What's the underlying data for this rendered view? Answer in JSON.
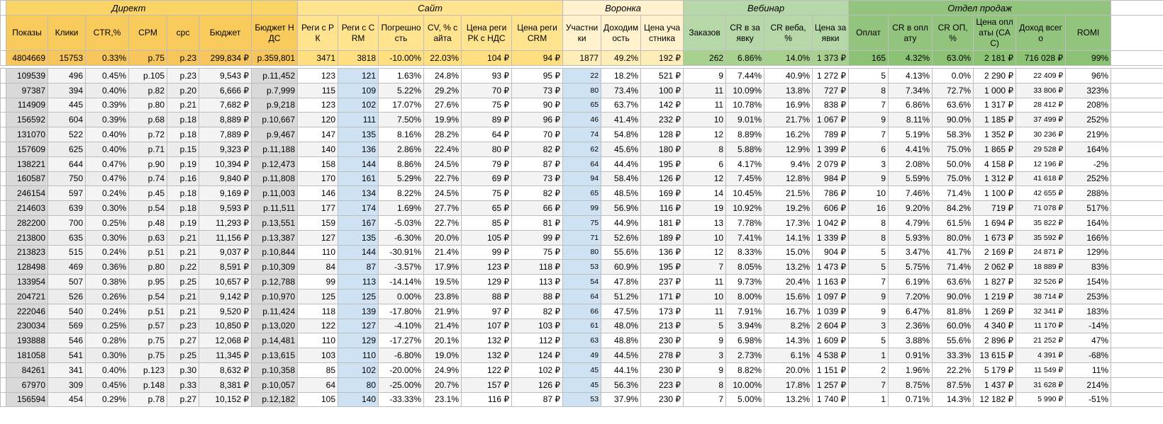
{
  "table": {
    "groups": [
      {
        "label": "Директ",
        "columns": [
          "Показы",
          "Клики",
          "CTR,%",
          "CPM",
          "cpc",
          "Бюджет"
        ]
      },
      {
        "columns": [
          "Бюджет НДС"
        ]
      },
      {
        "label": "Сайт",
        "columns": [
          "Реги с РК",
          "Реги с CRM",
          "Погрешность",
          "CV, % сайта",
          "Цена реги РК с НДС",
          "Цена реги CRM"
        ]
      },
      {
        "label": "Воронка",
        "columns": [
          "Участники",
          "Доходимость",
          "Цена участника"
        ]
      },
      {
        "label": "Вебинар",
        "columns": [
          "Заказов",
          "CR в заявку",
          "CR веба, %",
          "Цена заявки"
        ]
      },
      {
        "label": "Отдел продаж",
        "columns": [
          "Оплат",
          "CR в оплату",
          "CR ОП, %",
          "Цена оплаты (CAC)",
          "Доход всего",
          "ROMI"
        ]
      }
    ],
    "totals": [
      "4804669",
      "15753",
      "0.33%",
      "р.75",
      "р.23",
      "299,834 ₽",
      "р.359,801",
      "3471",
      "3818",
      "-10.00%",
      "22.03%",
      "104 ₽",
      "94 ₽",
      "1877",
      "49.2%",
      "192 ₽",
      "262",
      "6.86%",
      "14.0%",
      "1 373 ₽",
      "165",
      "4.32%",
      "63.0%",
      "2 181 ₽",
      "716 028 ₽",
      "99%"
    ],
    "rows": [
      [
        "109539",
        "496",
        "0.45%",
        "р.105",
        "р.23",
        "9,543 ₽",
        "р.11,452",
        "123",
        "121",
        "1.63%",
        "24.8%",
        "93 ₽",
        "95 ₽",
        "22",
        "18.2%",
        "521 ₽",
        "9",
        "7.44%",
        "40.9%",
        "1 272 ₽",
        "5",
        "4.13%",
        "0.0%",
        "2 290 ₽",
        "22 409 ₽",
        "96%"
      ],
      [
        "97387",
        "394",
        "0.40%",
        "р.82",
        "р.20",
        "6,666 ₽",
        "р.7,999",
        "115",
        "109",
        "5.22%",
        "29.2%",
        "70 ₽",
        "73 ₽",
        "80",
        "73.4%",
        "100 ₽",
        "11",
        "10.09%",
        "13.8%",
        "727 ₽",
        "8",
        "7.34%",
        "72.7%",
        "1 000 ₽",
        "33 806 ₽",
        "323%"
      ],
      [
        "114909",
        "445",
        "0.39%",
        "р.80",
        "р.21",
        "7,682 ₽",
        "р.9,218",
        "123",
        "102",
        "17.07%",
        "27.6%",
        "75 ₽",
        "90 ₽",
        "65",
        "63.7%",
        "142 ₽",
        "11",
        "10.78%",
        "16.9%",
        "838 ₽",
        "7",
        "6.86%",
        "63.6%",
        "1 317 ₽",
        "28 412 ₽",
        "208%"
      ],
      [
        "156592",
        "604",
        "0.39%",
        "р.68",
        "р.18",
        "8,889 ₽",
        "р.10,667",
        "120",
        "111",
        "7.50%",
        "19.9%",
        "89 ₽",
        "96 ₽",
        "46",
        "41.4%",
        "232 ₽",
        "10",
        "9.01%",
        "21.7%",
        "1 067 ₽",
        "9",
        "8.11%",
        "90.0%",
        "1 185 ₽",
        "37 499 ₽",
        "252%"
      ],
      [
        "131070",
        "522",
        "0.40%",
        "р.72",
        "р.18",
        "7,889 ₽",
        "р.9,467",
        "147",
        "135",
        "8.16%",
        "28.2%",
        "64 ₽",
        "70 ₽",
        "74",
        "54.8%",
        "128 ₽",
        "12",
        "8.89%",
        "16.2%",
        "789 ₽",
        "7",
        "5.19%",
        "58.3%",
        "1 352 ₽",
        "30 236 ₽",
        "219%"
      ],
      [
        "157609",
        "625",
        "0.40%",
        "р.71",
        "р.15",
        "9,323 ₽",
        "р.11,188",
        "140",
        "136",
        "2.86%",
        "22.4%",
        "80 ₽",
        "82 ₽",
        "62",
        "45.6%",
        "180 ₽",
        "8",
        "5.88%",
        "12.9%",
        "1 399 ₽",
        "6",
        "4.41%",
        "75.0%",
        "1 865 ₽",
        "29 528 ₽",
        "164%"
      ],
      [
        "138221",
        "644",
        "0.47%",
        "р.90",
        "р.19",
        "10,394 ₽",
        "р.12,473",
        "158",
        "144",
        "8.86%",
        "24.5%",
        "79 ₽",
        "87 ₽",
        "64",
        "44.4%",
        "195 ₽",
        "6",
        "4.17%",
        "9.4%",
        "2 079 ₽",
        "3",
        "2.08%",
        "50.0%",
        "4 158 ₽",
        "12 196 ₽",
        "-2%"
      ],
      [
        "160587",
        "750",
        "0.47%",
        "р.74",
        "р.16",
        "9,840 ₽",
        "р.11,808",
        "170",
        "161",
        "5.29%",
        "22.7%",
        "69 ₽",
        "73 ₽",
        "94",
        "58.4%",
        "126 ₽",
        "12",
        "7.45%",
        "12.8%",
        "984 ₽",
        "9",
        "5.59%",
        "75.0%",
        "1 312 ₽",
        "41 618 ₽",
        "252%"
      ],
      [
        "246154",
        "597",
        "0.24%",
        "р.45",
        "р.18",
        "9,169 ₽",
        "р.11,003",
        "146",
        "134",
        "8.22%",
        "24.5%",
        "75 ₽",
        "82 ₽",
        "65",
        "48.5%",
        "169 ₽",
        "14",
        "10.45%",
        "21.5%",
        "786 ₽",
        "10",
        "7.46%",
        "71.4%",
        "1 100 ₽",
        "42 655 ₽",
        "288%"
      ],
      [
        "214603",
        "639",
        "0.30%",
        "р.54",
        "р.18",
        "9,593 ₽",
        "р.11,511",
        "177",
        "174",
        "1.69%",
        "27.7%",
        "65 ₽",
        "66 ₽",
        "99",
        "56.9%",
        "116 ₽",
        "19",
        "10.92%",
        "19.2%",
        "606 ₽",
        "16",
        "9.20%",
        "84.2%",
        "719 ₽",
        "71 078 ₽",
        "517%"
      ],
      [
        "282200",
        "700",
        "0.25%",
        "р.48",
        "р.19",
        "11,293 ₽",
        "р.13,551",
        "159",
        "167",
        "-5.03%",
        "22.7%",
        "85 ₽",
        "81 ₽",
        "75",
        "44.9%",
        "181 ₽",
        "13",
        "7.78%",
        "17.3%",
        "1 042 ₽",
        "8",
        "4.79%",
        "61.5%",
        "1 694 ₽",
        "35 822 ₽",
        "164%"
      ],
      [
        "213800",
        "635",
        "0.30%",
        "р.63",
        "р.21",
        "11,156 ₽",
        "р.13,387",
        "127",
        "135",
        "-6.30%",
        "20.0%",
        "105 ₽",
        "99 ₽",
        "71",
        "52.6%",
        "189 ₽",
        "10",
        "7.41%",
        "14.1%",
        "1 339 ₽",
        "8",
        "5.93%",
        "80.0%",
        "1 673 ₽",
        "35 592 ₽",
        "166%"
      ],
      [
        "213823",
        "515",
        "0.24%",
        "р.51",
        "р.21",
        "9,037 ₽",
        "р.10,844",
        "110",
        "144",
        "-30.91%",
        "21.4%",
        "99 ₽",
        "75 ₽",
        "80",
        "55.6%",
        "136 ₽",
        "12",
        "8.33%",
        "15.0%",
        "904 ₽",
        "5",
        "3.47%",
        "41.7%",
        "2 169 ₽",
        "24 871 ₽",
        "129%"
      ],
      [
        "128498",
        "469",
        "0.36%",
        "р.80",
        "р.22",
        "8,591 ₽",
        "р.10,309",
        "84",
        "87",
        "-3.57%",
        "17.9%",
        "123 ₽",
        "118 ₽",
        "53",
        "60.9%",
        "195 ₽",
        "7",
        "8.05%",
        "13.2%",
        "1 473 ₽",
        "5",
        "5.75%",
        "71.4%",
        "2 062 ₽",
        "18 889 ₽",
        "83%"
      ],
      [
        "133954",
        "507",
        "0.38%",
        "р.95",
        "р.25",
        "10,657 ₽",
        "р.12,788",
        "99",
        "113",
        "-14.14%",
        "19.5%",
        "129 ₽",
        "113 ₽",
        "54",
        "47.8%",
        "237 ₽",
        "11",
        "9.73%",
        "20.4%",
        "1 163 ₽",
        "7",
        "6.19%",
        "63.6%",
        "1 827 ₽",
        "32 526 ₽",
        "154%"
      ],
      [
        "204721",
        "526",
        "0.26%",
        "р.54",
        "р.21",
        "9,142 ₽",
        "р.10,970",
        "125",
        "125",
        "0.00%",
        "23.8%",
        "88 ₽",
        "88 ₽",
        "64",
        "51.2%",
        "171 ₽",
        "10",
        "8.00%",
        "15.6%",
        "1 097 ₽",
        "9",
        "7.20%",
        "90.0%",
        "1 219 ₽",
        "38 714 ₽",
        "253%"
      ],
      [
        "222046",
        "540",
        "0.24%",
        "р.51",
        "р.21",
        "9,520 ₽",
        "р.11,424",
        "118",
        "139",
        "-17.80%",
        "21.9%",
        "97 ₽",
        "82 ₽",
        "66",
        "47.5%",
        "173 ₽",
        "11",
        "7.91%",
        "16.7%",
        "1 039 ₽",
        "9",
        "6.47%",
        "81.8%",
        "1 269 ₽",
        "32 341 ₽",
        "183%"
      ],
      [
        "230034",
        "569",
        "0.25%",
        "р.57",
        "р.23",
        "10,850 ₽",
        "р.13,020",
        "122",
        "127",
        "-4.10%",
        "21.4%",
        "107 ₽",
        "103 ₽",
        "61",
        "48.0%",
        "213 ₽",
        "5",
        "3.94%",
        "8.2%",
        "2 604 ₽",
        "3",
        "2.36%",
        "60.0%",
        "4 340 ₽",
        "11 170 ₽",
        "-14%"
      ],
      [
        "193888",
        "546",
        "0.28%",
        "р.75",
        "р.27",
        "12,068 ₽",
        "р.14,481",
        "110",
        "129",
        "-17.27%",
        "20.1%",
        "132 ₽",
        "112 ₽",
        "63",
        "48.8%",
        "230 ₽",
        "9",
        "6.98%",
        "14.3%",
        "1 609 ₽",
        "5",
        "3.88%",
        "55.6%",
        "2 896 ₽",
        "21 252 ₽",
        "47%"
      ],
      [
        "181058",
        "541",
        "0.30%",
        "р.75",
        "р.25",
        "11,345 ₽",
        "р.13,615",
        "103",
        "110",
        "-6.80%",
        "19.0%",
        "132 ₽",
        "124 ₽",
        "49",
        "44.5%",
        "278 ₽",
        "3",
        "2.73%",
        "6.1%",
        "4 538 ₽",
        "1",
        "0.91%",
        "33.3%",
        "13 615 ₽",
        "4 391 ₽",
        "-68%"
      ],
      [
        "84261",
        "341",
        "0.40%",
        "р.123",
        "р.30",
        "8,632 ₽",
        "р.10,358",
        "85",
        "102",
        "-20.00%",
        "24.9%",
        "122 ₽",
        "102 ₽",
        "45",
        "44.1%",
        "230 ₽",
        "9",
        "8.82%",
        "20.0%",
        "1 151 ₽",
        "2",
        "1.96%",
        "22.2%",
        "5 179 ₽",
        "11 549 ₽",
        "11%"
      ],
      [
        "67970",
        "309",
        "0.45%",
        "р.148",
        "р.33",
        "8,381 ₽",
        "р.10,057",
        "64",
        "80",
        "-25.00%",
        "20.7%",
        "157 ₽",
        "126 ₽",
        "45",
        "56.3%",
        "223 ₽",
        "8",
        "10.00%",
        "17.8%",
        "1 257 ₽",
        "7",
        "8.75%",
        "87.5%",
        "1 437 ₽",
        "31 628 ₽",
        "214%"
      ],
      [
        "156594",
        "454",
        "0.29%",
        "р.78",
        "р.27",
        "10,152 ₽",
        "р.12,182",
        "105",
        "140",
        "-33.33%",
        "23.1%",
        "116 ₽",
        "87 ₽",
        "53",
        "37.9%",
        "230 ₽",
        "7",
        "5.00%",
        "13.2%",
        "1 740 ₽",
        "1",
        "0.71%",
        "14.3%",
        "12 182 ₽",
        "5 990 ₽",
        "-51%"
      ]
    ]
  }
}
